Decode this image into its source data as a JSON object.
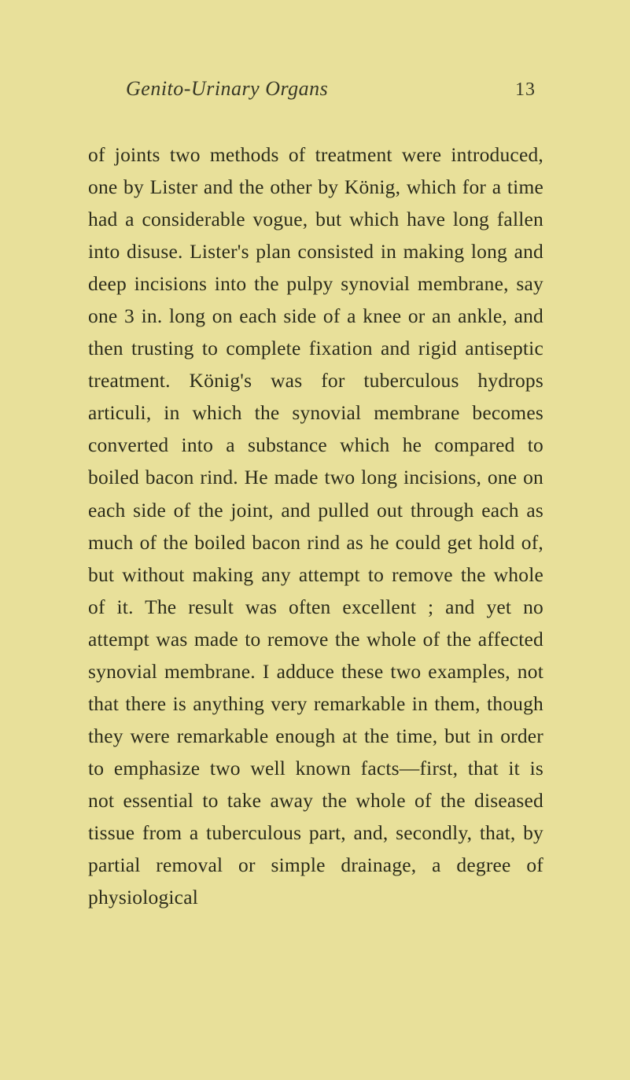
{
  "page": {
    "running_title": "Genito-Urinary Organs",
    "page_number": "13",
    "body_text": "of joints two methods of treatment were introduced, one by Lister and the other by König, which for a time had a considerable vogue, but which have long fallen into disuse. Lister's plan consisted in making long and deep incisions into the pulpy synovial membrane, say one 3 in. long on each side of a knee or an ankle, and then trusting to complete fixation and rigid antiseptic treatment. König's was for tuberculous hydrops articuli, in which the synovial membrane becomes converted into a substance which he compared to boiled bacon rind. He made two long incisions, one on each side of the joint, and pulled out through each as much of the boiled bacon rind as he could get hold of, but without making any attempt to remove the whole of it. The result was often excellent ; and yet no attempt was made to remove the whole of the affected synovial membrane. I adduce these two examples, not that there is anything very remarkable in them, though they were remarkable enough at the time, but in order to emphasize two well known facts—first, that it is not essential to take away the whole of the diseased tissue from a tuberculous part, and, secondly, that, by partial removal or simple drainage, a degree of physiological"
  },
  "colors": {
    "background": "#e8e09a",
    "text": "#2a2a1a",
    "header_text": "#383825"
  },
  "typography": {
    "body_fontsize": 25.5,
    "header_fontsize": 26,
    "page_number_fontsize": 24,
    "line_height": 1.61,
    "font_family": "Georgia serif"
  }
}
